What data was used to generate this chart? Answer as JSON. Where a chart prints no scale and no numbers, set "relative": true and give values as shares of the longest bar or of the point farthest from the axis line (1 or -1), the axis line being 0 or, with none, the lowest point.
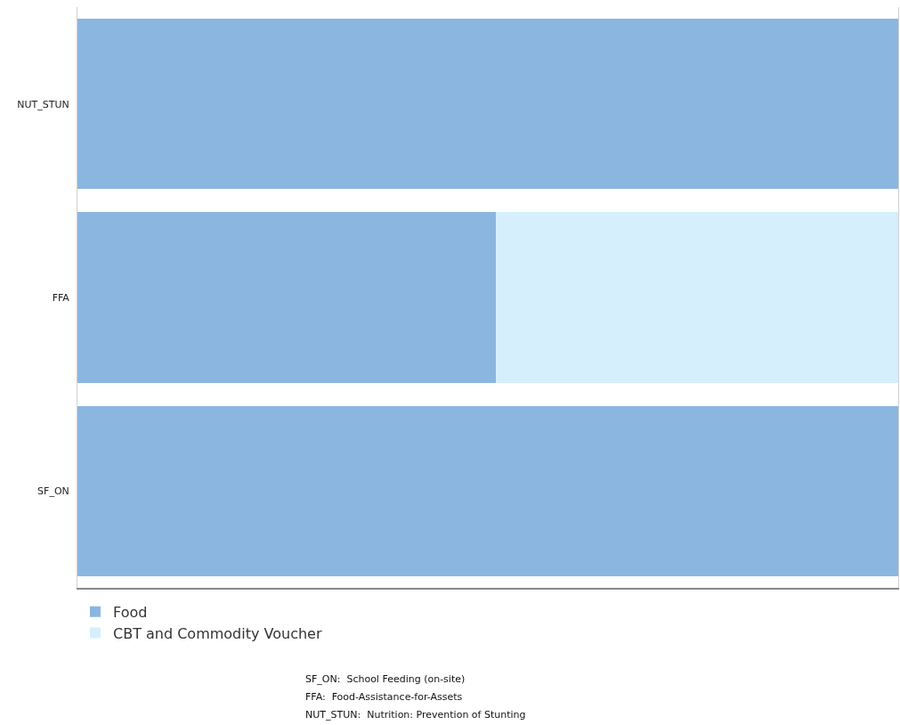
{
  "chart_data": {
    "type": "bar",
    "orientation": "horizontal",
    "stacked": true,
    "relative": true,
    "legend": "bottom",
    "categories": [
      "NUT_STUN",
      "FFA",
      "SF_ON"
    ],
    "series": [
      {
        "name": "Food",
        "color": "#8ab6e0",
        "values": [
          1,
          0.51,
          1
        ]
      },
      {
        "name": "CBT and Commodity Voucher",
        "color": "#d5effc",
        "values": [
          null,
          0.49,
          null
        ]
      }
    ],
    "annotations": [
      "SF_ON:  School Feeding (on-site)",
      "FFA:  Food-Assistance-for-Assets",
      "NUT_STUN:  Nutrition: Prevention of Stunting"
    ]
  }
}
